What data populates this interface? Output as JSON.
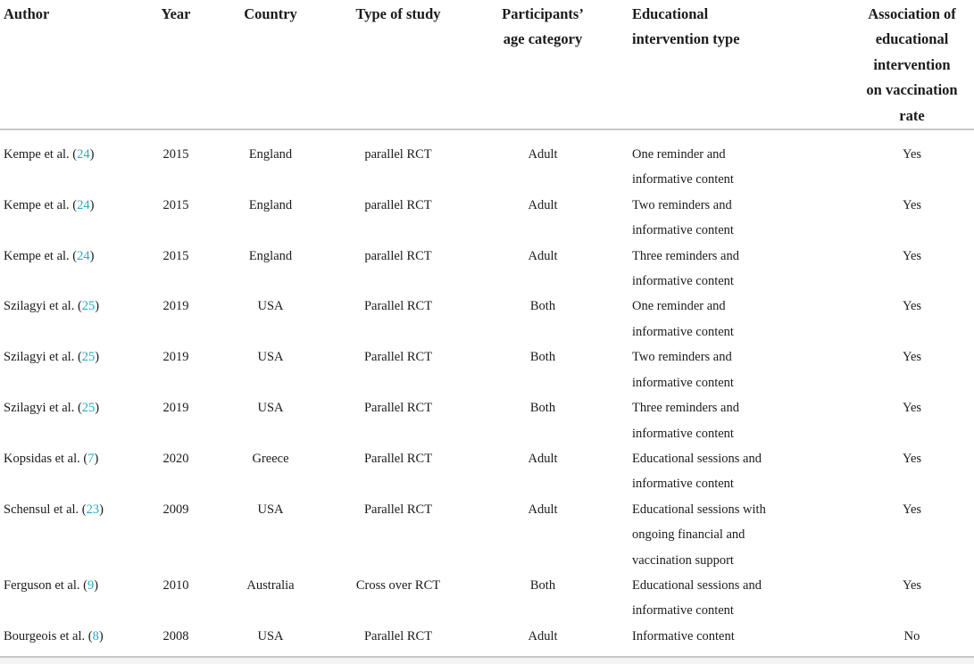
{
  "colors": {
    "text": "#1b1b1b",
    "citation_link": "#24aacb",
    "rule": "#c8c8c8",
    "background": "#ffffff"
  },
  "table": {
    "columns": [
      {
        "label": "Author"
      },
      {
        "label": "Year"
      },
      {
        "label": "Country"
      },
      {
        "label": "Type of study"
      },
      {
        "label": "Participants’\nage category"
      },
      {
        "label": "Educational\nintervention type"
      },
      {
        "label": "Association of\neducational\nintervention\non vaccination\nrate"
      }
    ],
    "rows": [
      {
        "author_pre": "Kempe et al. (",
        "ref": "24",
        "author_post": ")",
        "year": "2015",
        "country": "England",
        "study_type": "parallel RCT",
        "age_category": "Adult",
        "intervention": "One reminder and\ninformative content",
        "association": "Yes"
      },
      {
        "author_pre": "Kempe et al. (",
        "ref": "24",
        "author_post": ")",
        "year": "2015",
        "country": "England",
        "study_type": "parallel RCT",
        "age_category": "Adult",
        "intervention": "Two reminders and\ninformative content",
        "association": "Yes"
      },
      {
        "author_pre": "Kempe et al. (",
        "ref": "24",
        "author_post": ")",
        "year": "2015",
        "country": "England",
        "study_type": "parallel RCT",
        "age_category": "Adult",
        "intervention": "Three reminders and\ninformative content",
        "association": "Yes"
      },
      {
        "author_pre": "Szilagyi et al. (",
        "ref": "25",
        "author_post": ")",
        "year": "2019",
        "country": "USA",
        "study_type": "Parallel RCT",
        "age_category": "Both",
        "intervention": "One reminder and\ninformative content",
        "association": "Yes"
      },
      {
        "author_pre": "Szilagyi et al. (",
        "ref": "25",
        "author_post": ")",
        "year": "2019",
        "country": "USA",
        "study_type": "Parallel RCT",
        "age_category": "Both",
        "intervention": "Two reminders and\ninformative content",
        "association": "Yes"
      },
      {
        "author_pre": "Szilagyi et al. (",
        "ref": "25",
        "author_post": ")",
        "year": "2019",
        "country": "USA",
        "study_type": "Parallel RCT",
        "age_category": "Both",
        "intervention": "Three reminders and\ninformative content",
        "association": "Yes"
      },
      {
        "author_pre": "Kopsidas et al. (",
        "ref": "7",
        "author_post": ")",
        "year": "2020",
        "country": "Greece",
        "study_type": "Parallel RCT",
        "age_category": "Adult",
        "intervention": "Educational sessions and\ninformative content",
        "association": "Yes"
      },
      {
        "author_pre": "Schensul et al. (",
        "ref": "23",
        "author_post": ")",
        "year": "2009",
        "country": "USA",
        "study_type": "Parallel RCT",
        "age_category": "Adult",
        "intervention": "Educational sessions with\nongoing financial and\nvaccination support",
        "association": "Yes"
      },
      {
        "author_pre": "Ferguson et al. (",
        "ref": "9",
        "author_post": ")",
        "year": "2010",
        "country": "Australia",
        "study_type": "Cross over RCT",
        "age_category": "Both",
        "intervention": "Educational sessions and\ninformative content",
        "association": "Yes"
      },
      {
        "author_pre": "Bourgeois et al. (",
        "ref": "8",
        "author_post": ")",
        "year": "2008",
        "country": "USA",
        "study_type": "Parallel RCT",
        "age_category": "Adult",
        "intervention": "Informative content",
        "association": "No"
      }
    ]
  }
}
